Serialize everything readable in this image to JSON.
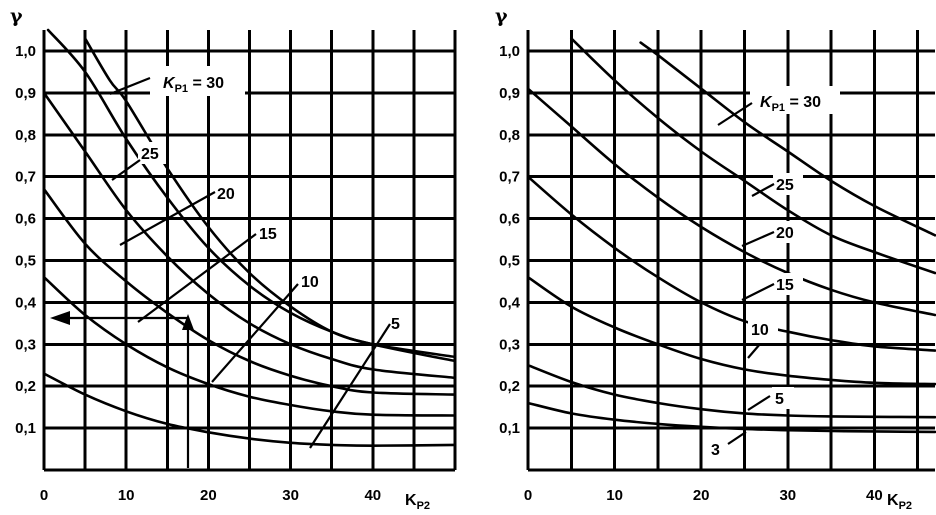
{
  "chart_data": [
    {
      "type": "line",
      "title": "",
      "ylabel": "γ",
      "xlabel_main": "K",
      "xlabel_sub": "P2",
      "xlim": [
        0,
        50
      ],
      "ylim": [
        0,
        1.05
      ],
      "grid": true,
      "x_ticks": [
        0,
        10,
        20,
        30,
        40
      ],
      "x_tick_labels": [
        "0",
        "10",
        "20",
        "30",
        "40"
      ],
      "y_ticks": [
        0.1,
        0.2,
        0.3,
        0.4,
        0.5,
        0.6,
        0.7,
        0.8,
        0.9,
        1.0
      ],
      "y_tick_labels": [
        "0,1",
        "0,2",
        "0,3",
        "0,4",
        "0,5",
        "0,6",
        "0,7",
        "0,8",
        "0,9",
        "1,0"
      ],
      "series": [
        {
          "name": "5",
          "x": [
            0,
            5,
            10,
            15,
            20,
            25,
            30,
            35,
            40,
            50
          ],
          "y": [
            0.23,
            0.18,
            0.14,
            0.11,
            0.09,
            0.075,
            0.065,
            0.06,
            0.058,
            0.06
          ]
        },
        {
          "name": "10",
          "x": [
            0,
            5,
            10,
            15,
            20,
            25,
            30,
            35,
            40,
            50
          ],
          "y": [
            0.46,
            0.37,
            0.3,
            0.245,
            0.205,
            0.175,
            0.155,
            0.14,
            0.132,
            0.13
          ]
        },
        {
          "name": "15",
          "x": [
            0,
            5,
            10,
            15,
            20,
            25,
            30,
            35,
            40,
            50
          ],
          "y": [
            0.67,
            0.54,
            0.45,
            0.375,
            0.31,
            0.26,
            0.225,
            0.2,
            0.185,
            0.18
          ]
        },
        {
          "name": "20",
          "x": [
            0,
            5,
            10,
            15,
            20,
            25,
            30,
            35,
            40,
            50
          ],
          "y": [
            0.9,
            0.76,
            0.62,
            0.51,
            0.42,
            0.35,
            0.3,
            0.265,
            0.24,
            0.22
          ]
        },
        {
          "name": "25",
          "x": [
            0.5,
            5,
            10,
            15,
            20,
            25,
            30,
            35,
            40,
            50
          ],
          "y": [
            1.05,
            0.95,
            0.79,
            0.65,
            0.53,
            0.44,
            0.375,
            0.33,
            0.3,
            0.27
          ]
        },
        {
          "name": "30",
          "x": [
            5,
            8,
            10,
            15,
            20,
            25,
            30,
            35,
            40,
            50
          ],
          "y": [
            1.03,
            0.93,
            0.88,
            0.72,
            0.58,
            0.47,
            0.39,
            0.33,
            0.3,
            0.26
          ]
        }
      ],
      "curve_labels": [
        {
          "text": "K",
          "sub": "P1",
          "suffix": " = 30"
        },
        {
          "text": "25"
        },
        {
          "text": "20"
        },
        {
          "text": "15"
        },
        {
          "text": "10"
        },
        {
          "text": "5"
        }
      ]
    },
    {
      "type": "line",
      "title": "",
      "ylabel": "γ",
      "xlabel_main": "K",
      "xlabel_sub": "P2",
      "xlim": [
        0,
        47
      ],
      "ylim": [
        0,
        1.05
      ],
      "grid": true,
      "x_ticks": [
        0,
        10,
        20,
        30,
        40
      ],
      "x_tick_labels": [
        "0",
        "10",
        "20",
        "30",
        "40"
      ],
      "y_ticks": [
        0.1,
        0.2,
        0.3,
        0.4,
        0.5,
        0.6,
        0.7,
        0.8,
        0.9,
        1.0
      ],
      "y_tick_labels": [
        "0,1",
        "0,2",
        "0,3",
        "0,4",
        "0,5",
        "0,6",
        "0,7",
        "0,8",
        "0,9",
        "1,0"
      ],
      "series": [
        {
          "name": "3",
          "x": [
            0,
            5,
            10,
            15,
            20,
            25,
            30,
            35,
            40,
            47
          ],
          "y": [
            0.16,
            0.135,
            0.12,
            0.11,
            0.103,
            0.098,
            0.095,
            0.093,
            0.092,
            0.091
          ]
        },
        {
          "name": "5",
          "x": [
            0,
            5,
            10,
            15,
            20,
            25,
            30,
            35,
            40,
            47
          ],
          "y": [
            0.25,
            0.21,
            0.18,
            0.16,
            0.145,
            0.135,
            0.13,
            0.128,
            0.127,
            0.126
          ]
        },
        {
          "name": "10",
          "x": [
            0,
            5,
            10,
            15,
            20,
            25,
            30,
            35,
            40,
            47
          ],
          "y": [
            0.46,
            0.39,
            0.34,
            0.3,
            0.265,
            0.24,
            0.225,
            0.215,
            0.208,
            0.205
          ]
        },
        {
          "name": "15",
          "x": [
            0,
            5,
            10,
            15,
            20,
            25,
            30,
            35,
            40,
            47
          ],
          "y": [
            0.7,
            0.61,
            0.53,
            0.46,
            0.4,
            0.355,
            0.33,
            0.31,
            0.295,
            0.285
          ]
        },
        {
          "name": "20",
          "x": [
            0,
            5,
            10,
            15,
            20,
            25,
            30,
            35,
            40,
            47
          ],
          "y": [
            0.91,
            0.82,
            0.73,
            0.65,
            0.58,
            0.52,
            0.47,
            0.43,
            0.4,
            0.37
          ]
        },
        {
          "name": "25",
          "x": [
            5,
            10,
            15,
            20,
            25,
            30,
            35,
            40,
            47
          ],
          "y": [
            1.03,
            0.93,
            0.84,
            0.76,
            0.69,
            0.62,
            0.56,
            0.52,
            0.47
          ]
        },
        {
          "name": "30",
          "x": [
            13,
            15,
            20,
            25,
            30,
            35,
            40,
            47
          ],
          "y": [
            1.02,
            0.99,
            0.91,
            0.83,
            0.76,
            0.69,
            0.63,
            0.56
          ]
        }
      ],
      "curve_labels": [
        {
          "text": "K",
          "sub": "P1",
          "suffix": " = 30"
        },
        {
          "text": "25"
        },
        {
          "text": "20"
        },
        {
          "text": "15"
        },
        {
          "text": "10"
        },
        {
          "text": "5"
        },
        {
          "text": "3"
        }
      ]
    }
  ]
}
